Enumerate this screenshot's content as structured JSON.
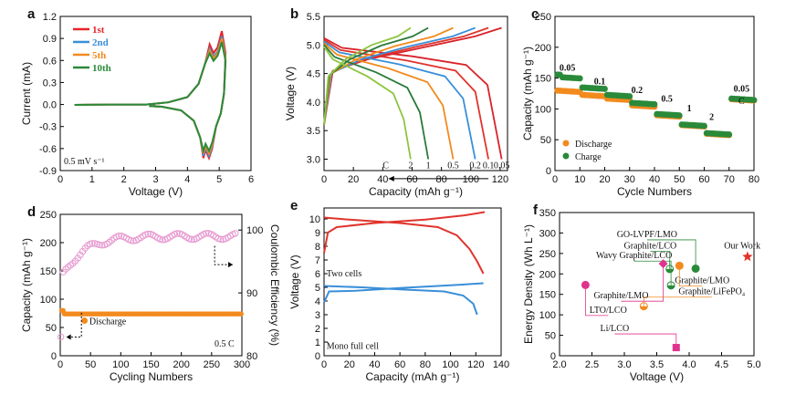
{
  "chart_data": [
    {
      "id": "a",
      "type": "line",
      "panel_label": "a",
      "xlabel": "Voltage (V)",
      "ylabel": "Current (mA)",
      "xlim": [
        0,
        6
      ],
      "ylim": [
        -0.9,
        1.2
      ],
      "xticks": [
        "0",
        "1",
        "2",
        "3",
        "4",
        "5",
        "6"
      ],
      "yticks": [
        "-0.9",
        "-0.6",
        "-0.3",
        "0.0",
        "0.3",
        "0.6",
        "0.9",
        "1.2"
      ],
      "annotation": "0.5 mV s⁻¹",
      "series": [
        {
          "name": "1st",
          "color": "#e8232a",
          "peak": 1.0,
          "low": -0.73
        },
        {
          "name": "2nd",
          "color": "#3a8fd8",
          "peak": 0.93,
          "low": -0.7
        },
        {
          "name": "5th",
          "color": "#f28a1e",
          "peak": 0.9,
          "low": -0.67
        },
        {
          "name": "10th",
          "color": "#2a8a3a",
          "peak": 0.85,
          "low": -0.63
        }
      ]
    },
    {
      "id": "b",
      "type": "line",
      "panel_label": "b",
      "xlabel": "Capacity (mAh g⁻¹)",
      "ylabel": "Voltage (V)",
      "xlim": [
        0,
        125
      ],
      "ylim": [
        2.8,
        5.5
      ],
      "xticks": [
        "0",
        "20",
        "40",
        "60",
        "80",
        "100",
        "120"
      ],
      "yticks": [
        "3.0",
        "3.5",
        "4.0",
        "4.5",
        "5.0",
        "5.5"
      ],
      "arrow_label": "C",
      "series": [
        {
          "rate": "0.05",
          "capacity": 121,
          "color": "#d8232a"
        },
        {
          "rate": "0.1",
          "capacity": 112,
          "color": "#e0342d"
        },
        {
          "rate": "0.2",
          "capacity": 103,
          "color": "#3a8fd8"
        },
        {
          "rate": "0.5",
          "capacity": 88,
          "color": "#f28a1e"
        },
        {
          "rate": "1",
          "capacity": 71,
          "color": "#2a7a3a"
        },
        {
          "rate": "2",
          "capacity": 59,
          "color": "#8ec53f"
        }
      ]
    },
    {
      "id": "c",
      "type": "scatter",
      "panel_label": "c",
      "xlabel": "Cycle Numbers",
      "ylabel": "Capacity (mAh g⁻¹)",
      "xlim": [
        0,
        80
      ],
      "ylim": [
        0,
        250
      ],
      "xticks": [
        "0",
        "10",
        "20",
        "30",
        "40",
        "50",
        "60",
        "70",
        "80"
      ],
      "yticks": [
        "0",
        "50",
        "100",
        "150",
        "200",
        "250"
      ],
      "rate_labels": [
        "0.05",
        "0.1",
        "0.2",
        "0.5",
        "1",
        "2",
        "0.05",
        "C"
      ],
      "series": [
        {
          "name": "Discharge",
          "color": "#f28a1e",
          "segments": [
            [
              0,
              10,
              130
            ],
            [
              10,
              20,
              123
            ],
            [
              20,
              30,
              117
            ],
            [
              30,
              40,
              106
            ],
            [
              40,
              50,
              90
            ],
            [
              50,
              60,
              74
            ],
            [
              60,
              70,
              60
            ],
            [
              70,
              80,
              116
            ]
          ]
        },
        {
          "name": "Charge",
          "color": "#2a8a3a",
          "segments": [
            [
              0,
              10,
              152
            ],
            [
              10,
              20,
              135
            ],
            [
              20,
              30,
              123
            ],
            [
              30,
              40,
              110
            ],
            [
              40,
              50,
              92
            ],
            [
              50,
              60,
              75
            ],
            [
              60,
              70,
              61
            ],
            [
              70,
              80,
              117
            ]
          ]
        }
      ]
    },
    {
      "id": "d",
      "type": "scatter",
      "panel_label": "d",
      "xlabel": "Cycling Numbers",
      "ylabel": "Capacity (mAh g⁻¹)",
      "y2label": "Coulombic Efficiency (%)",
      "xlim": [
        0,
        300
      ],
      "ylim": [
        0,
        250
      ],
      "y2lim": [
        80,
        102.5
      ],
      "xticks": [
        "0",
        "50",
        "100",
        "150",
        "200",
        "250",
        "300"
      ],
      "yticks": [
        "0",
        "50",
        "100",
        "150",
        "200",
        "250"
      ],
      "y2ticks": [
        "80",
        "90",
        "100"
      ],
      "annotation": "0.5 C",
      "series": [
        {
          "name": "Discharge",
          "color": "#f28a1e",
          "value": 74
        },
        {
          "name": "Coulombic Efficiency",
          "color": "#e79ad0"
        }
      ]
    },
    {
      "id": "e",
      "type": "line",
      "panel_label": "e",
      "xlabel": "Capacity (mAh g⁻¹)",
      "ylabel": "Voltage (V)",
      "xlim": [
        0,
        140
      ],
      "ylim": [
        0,
        10.8
      ],
      "xticks": [
        "0",
        "20",
        "40",
        "60",
        "80",
        "100",
        "120",
        "140"
      ],
      "yticks": [
        "0",
        "1",
        "2",
        "3",
        "4",
        "5",
        "6",
        "7",
        "8",
        "9",
        "10"
      ],
      "series": [
        {
          "name": "Two cells",
          "color": "#e0342d"
        },
        {
          "name": "Mono full cell",
          "color": "#3a8fd8"
        }
      ]
    },
    {
      "id": "f",
      "type": "scatter",
      "panel_label": "f",
      "xlabel": "Voltage (V)",
      "ylabel": "Energy Density (Wh L⁻¹)",
      "xlim": [
        2,
        5
      ],
      "ylim": [
        0,
        350
      ],
      "xticks": [
        "2.0",
        "2.5",
        "3.0",
        "3.5",
        "4.0",
        "4.5",
        "5.0"
      ],
      "yticks": [
        "0",
        "50",
        "100",
        "150",
        "200",
        "250",
        "300",
        "350"
      ],
      "points": [
        {
          "label": "Our Work",
          "x": 4.9,
          "y": 242,
          "color": "#e0342d",
          "shape": "star"
        },
        {
          "label": "GO-LVPF/LMO",
          "x": 4.1,
          "y": 213,
          "color": "#2a8a3a",
          "shape": "circle"
        },
        {
          "label": "Graphite/LCO",
          "x": 3.7,
          "y": 212,
          "color": "#2a8a3a",
          "shape": "halfcircle"
        },
        {
          "label": "Wavy Graphite/LCO",
          "x": 3.72,
          "y": 172,
          "color": "#2a8a3a",
          "shape": "halfcircle"
        },
        {
          "label": "Graphite/LMO",
          "x": 3.85,
          "y": 220,
          "color": "#f28a1e",
          "shape": "circle"
        },
        {
          "label": "Graphite/LiFePO₄",
          "x": 3.3,
          "y": 121,
          "color": "#f28a1e",
          "shape": "halfcircle"
        },
        {
          "label": "Graphite/LMO",
          "x": 3.6,
          "y": 225,
          "color": "#e0338e",
          "shape": "diamond"
        },
        {
          "label": "LTO/LCO",
          "x": 2.4,
          "y": 173,
          "color": "#e0338e",
          "shape": "circle"
        },
        {
          "label": "Li/LCO",
          "x": 3.8,
          "y": 20,
          "color": "#e0338e",
          "shape": "square"
        }
      ]
    }
  ]
}
